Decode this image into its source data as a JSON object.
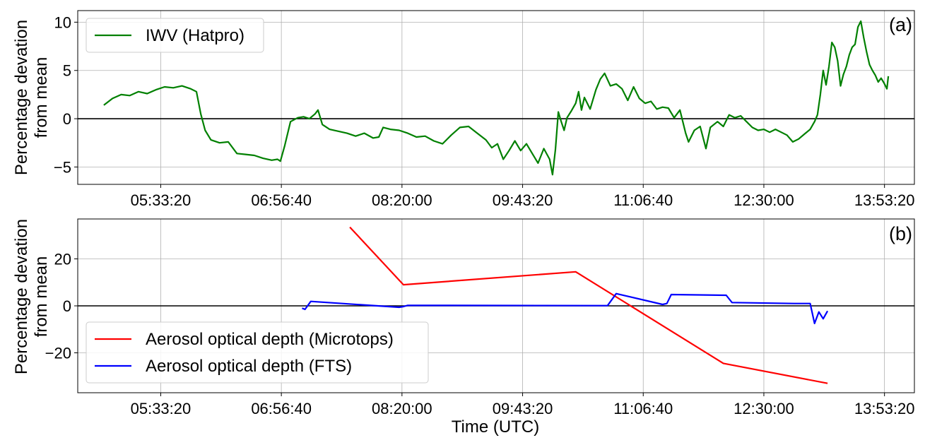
{
  "chart_data": [
    {
      "type": "line",
      "panel_label": "(a)",
      "ylabel": [
        "Percentage  devation",
        "from mean"
      ],
      "xlabel": "",
      "x_tick_labels": [
        "05:33:20",
        "06:56:40",
        "08:20:00",
        "09:43:20",
        "11:06:40",
        "12:30:00",
        "13:53:20"
      ],
      "x_range": [
        "04:36",
        "14:14"
      ],
      "y_ticks": [
        -5,
        0,
        5,
        10
      ],
      "y_tick_labels": [
        "−5",
        "0",
        "5",
        "10"
      ],
      "ylim": [
        -6.8,
        11.2
      ],
      "grid": true,
      "zero_line": true,
      "legend": {
        "placement": "upper-left",
        "entries": [
          {
            "label": "IWV (Hatpro)",
            "color": "#008000"
          }
        ]
      },
      "series": [
        {
          "name": "IWV (Hatpro)",
          "color": "#008000",
          "points": [
            [
              "04:54:00",
              1.4
            ],
            [
              "05:00:00",
              2.1
            ],
            [
              "05:06:00",
              2.5
            ],
            [
              "05:12:00",
              2.4
            ],
            [
              "05:18:00",
              2.8
            ],
            [
              "05:24:00",
              2.6
            ],
            [
              "05:30:00",
              3.0
            ],
            [
              "05:36:00",
              3.3
            ],
            [
              "05:42:00",
              3.2
            ],
            [
              "05:48:00",
              3.4
            ],
            [
              "05:54:00",
              3.1
            ],
            [
              "05:58:00",
              2.8
            ],
            [
              "06:01:00",
              0.5
            ],
            [
              "06:04:00",
              -1.2
            ],
            [
              "06:08:00",
              -2.2
            ],
            [
              "06:14:00",
              -2.5
            ],
            [
              "06:20:00",
              -2.4
            ],
            [
              "06:26:00",
              -3.6
            ],
            [
              "06:32:00",
              -3.7
            ],
            [
              "06:38:00",
              -3.8
            ],
            [
              "06:44:00",
              -4.1
            ],
            [
              "06:50:00",
              -4.3
            ],
            [
              "06:54:00",
              -4.2
            ],
            [
              "06:56:00",
              -4.4
            ],
            [
              "06:59:00",
              -2.8
            ],
            [
              "07:03:00",
              -0.3
            ],
            [
              "07:08:00",
              0.1
            ],
            [
              "07:12:00",
              0.2
            ],
            [
              "07:16:00",
              0.0
            ],
            [
              "07:20:00",
              0.5
            ],
            [
              "07:22:00",
              0.9
            ],
            [
              "07:25:00",
              -0.6
            ],
            [
              "07:30:00",
              -1.1
            ],
            [
              "07:36:00",
              -1.3
            ],
            [
              "07:42:00",
              -1.5
            ],
            [
              "07:48:00",
              -1.8
            ],
            [
              "07:54:00",
              -1.5
            ],
            [
              "08:00:00",
              -2.0
            ],
            [
              "08:04:00",
              -1.9
            ],
            [
              "08:07:00",
              -0.9
            ],
            [
              "08:12:00",
              -1.1
            ],
            [
              "08:18:00",
              -1.2
            ],
            [
              "08:24:00",
              -1.5
            ],
            [
              "08:30:00",
              -1.9
            ],
            [
              "08:36:00",
              -1.8
            ],
            [
              "08:42:00",
              -2.3
            ],
            [
              "08:48:00",
              -2.6
            ],
            [
              "08:54:00",
              -1.7
            ],
            [
              "09:00:00",
              -0.9
            ],
            [
              "09:06:00",
              -0.8
            ],
            [
              "09:12:00",
              -1.5
            ],
            [
              "09:18:00",
              -2.2
            ],
            [
              "09:22:00",
              -3.0
            ],
            [
              "09:26:00",
              -2.6
            ],
            [
              "09:30:00",
              -4.2
            ],
            [
              "09:34:00",
              -3.3
            ],
            [
              "09:38:00",
              -2.3
            ],
            [
              "09:42:00",
              -3.3
            ],
            [
              "09:46:00",
              -2.6
            ],
            [
              "09:50:00",
              -3.6
            ],
            [
              "09:54:00",
              -4.6
            ],
            [
              "09:58:00",
              -3.1
            ],
            [
              "10:02:00",
              -4.2
            ],
            [
              "10:04:00",
              -5.8
            ],
            [
              "10:06:00",
              -3.2
            ],
            [
              "10:08:00",
              0.7
            ],
            [
              "10:10:00",
              -0.3
            ],
            [
              "10:12:00",
              -1.2
            ],
            [
              "10:14:00",
              0.1
            ],
            [
              "10:17:00",
              0.8
            ],
            [
              "10:20:00",
              1.6
            ],
            [
              "10:22:00",
              2.8
            ],
            [
              "10:24:00",
              0.9
            ],
            [
              "10:26:00",
              2.2
            ],
            [
              "10:30:00",
              1.0
            ],
            [
              "10:34:00",
              3.0
            ],
            [
              "10:37:00",
              4.1
            ],
            [
              "10:40:00",
              4.7
            ],
            [
              "10:44:00",
              3.4
            ],
            [
              "10:48:00",
              3.6
            ],
            [
              "10:52:00",
              3.1
            ],
            [
              "10:56:00",
              1.9
            ],
            [
              "11:00:00",
              3.3
            ],
            [
              "11:04:00",
              2.1
            ],
            [
              "11:08:00",
              1.6
            ],
            [
              "11:12:00",
              1.8
            ],
            [
              "11:16:00",
              1.0
            ],
            [
              "11:20:00",
              1.2
            ],
            [
              "11:24:00",
              1.1
            ],
            [
              "11:28:00",
              0.1
            ],
            [
              "11:32:00",
              0.9
            ],
            [
              "11:36:00",
              -1.5
            ],
            [
              "11:38:00",
              -2.4
            ],
            [
              "11:42:00",
              -1.2
            ],
            [
              "11:46:00",
              -0.8
            ],
            [
              "11:50:00",
              -3.1
            ],
            [
              "11:53:00",
              -0.9
            ],
            [
              "11:58:00",
              -0.3
            ],
            [
              "12:02:00",
              -0.8
            ],
            [
              "12:06:00",
              0.4
            ],
            [
              "12:10:00",
              0.1
            ],
            [
              "12:14:00",
              0.3
            ],
            [
              "12:18:00",
              -0.3
            ],
            [
              "12:22:00",
              -0.9
            ],
            [
              "12:26:00",
              -1.2
            ],
            [
              "12:30:00",
              -1.1
            ],
            [
              "12:34:00",
              -1.4
            ],
            [
              "12:38:00",
              -1.1
            ],
            [
              "12:42:00",
              -1.4
            ],
            [
              "12:46:00",
              -1.7
            ],
            [
              "12:50:00",
              -2.4
            ],
            [
              "12:54:00",
              -2.1
            ],
            [
              "12:58:00",
              -1.6
            ],
            [
              "13:02:00",
              -1.1
            ],
            [
              "13:05:00",
              -0.3
            ],
            [
              "13:07:00",
              0.4
            ],
            [
              "13:09:00",
              2.5
            ],
            [
              "13:11:00",
              5.0
            ],
            [
              "13:13:00",
              3.5
            ],
            [
              "13:15:00",
              5.4
            ],
            [
              "13:17:00",
              7.9
            ],
            [
              "13:19:00",
              7.4
            ],
            [
              "13:21:00",
              6.0
            ],
            [
              "13:23:00",
              3.4
            ],
            [
              "13:25:00",
              4.6
            ],
            [
              "13:27:00",
              5.4
            ],
            [
              "13:29:00",
              6.6
            ],
            [
              "13:31:00",
              7.4
            ],
            [
              "13:33:00",
              7.7
            ],
            [
              "13:35:00",
              9.5
            ],
            [
              "13:37:00",
              10.1
            ],
            [
              "13:39:00",
              8.4
            ],
            [
              "13:41:00",
              6.9
            ],
            [
              "13:43:00",
              5.6
            ],
            [
              "13:45:00",
              5.0
            ],
            [
              "13:47:00",
              4.5
            ],
            [
              "13:49:00",
              3.8
            ],
            [
              "13:51:00",
              4.2
            ],
            [
              "13:53:00",
              3.7
            ],
            [
              "13:55:00",
              3.1
            ],
            [
              "13:56:00",
              4.4
            ]
          ]
        }
      ]
    },
    {
      "type": "line",
      "panel_label": "(b)",
      "ylabel": [
        "Percentage  devation",
        "from mean"
      ],
      "xlabel": "Time (UTC)",
      "x_tick_labels": [
        "05:33:20",
        "06:56:40",
        "08:20:00",
        "09:43:20",
        "11:06:40",
        "12:30:00",
        "13:53:20"
      ],
      "x_range": [
        "04:36",
        "14:14"
      ],
      "y_ticks": [
        -20,
        0,
        20
      ],
      "y_tick_labels": [
        "−20",
        "0",
        "20"
      ],
      "ylim": [
        -37,
        37
      ],
      "grid": true,
      "zero_line": true,
      "legend": {
        "placement": "lower-left",
        "entries": [
          {
            "label": "Aerosol optical depth (Microtops)",
            "color": "#ff0000"
          },
          {
            "label": "Aerosol optical depth (FTS)",
            "color": "#0000ff"
          }
        ]
      },
      "series": [
        {
          "name": "Aerosol optical depth (Microtops)",
          "color": "#ff0000",
          "points": [
            [
              "07:44:00",
              33.5
            ],
            [
              "08:21:00",
              9.0
            ],
            [
              "10:20:00",
              14.5
            ],
            [
              "12:02:00",
              -24.5
            ],
            [
              "13:14:00",
              -33.0
            ]
          ]
        },
        {
          "name": "Aerosol optical depth (FTS)",
          "color": "#0000ff",
          "points": [
            [
              "07:11:00",
              -1.0
            ],
            [
              "07:13:00",
              -1.5
            ],
            [
              "07:17:00",
              1.9
            ],
            [
              "08:18:00",
              -0.6
            ],
            [
              "08:21:00",
              -0.3
            ],
            [
              "08:24:00",
              0.2
            ],
            [
              "10:42:00",
              0.1
            ],
            [
              "10:48:00",
              5.2
            ],
            [
              "11:20:00",
              0.6
            ],
            [
              "11:23:00",
              1.0
            ],
            [
              "11:26:00",
              4.8
            ],
            [
              "12:04:00",
              4.5
            ],
            [
              "12:08:00",
              1.4
            ],
            [
              "12:51:00",
              1.0
            ],
            [
              "13:02:00",
              1.0
            ],
            [
              "13:05:00",
              -7.5
            ],
            [
              "13:08:00",
              -2.6
            ],
            [
              "13:11:00",
              -5.5
            ],
            [
              "13:14:00",
              -2.2
            ]
          ]
        }
      ]
    }
  ]
}
